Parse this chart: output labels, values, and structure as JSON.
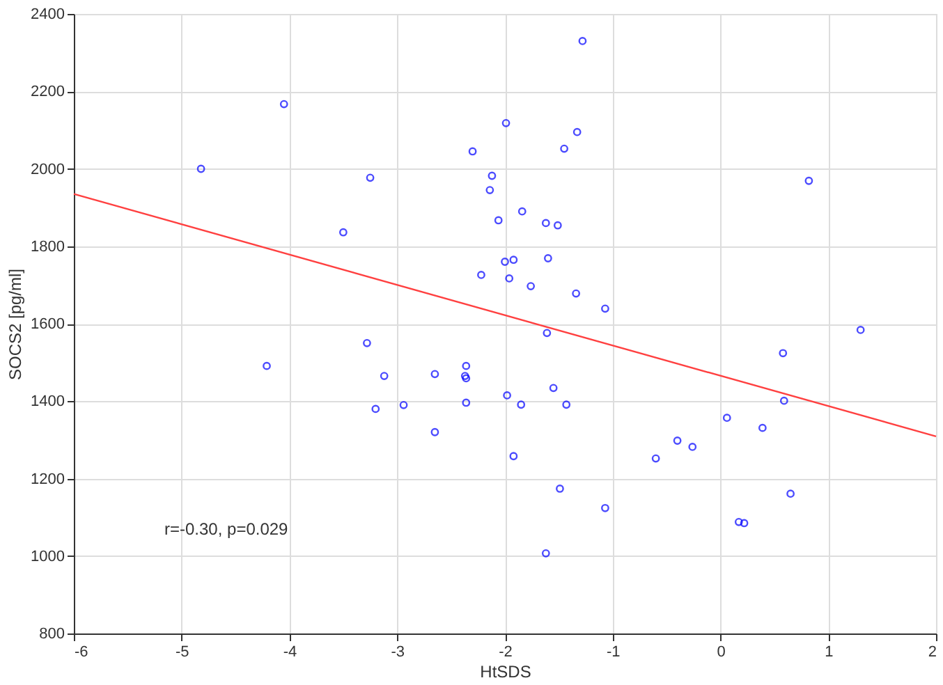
{
  "chart_data": {
    "type": "scatter",
    "xlabel": "HtSDS",
    "ylabel": "SOCS2 [pg/ml]",
    "xlim": [
      -6,
      2
    ],
    "ylim": [
      800,
      2400
    ],
    "xticks": [
      -6,
      -5,
      -4,
      -3,
      -2,
      -1,
      0,
      1,
      2
    ],
    "yticks": [
      800,
      1000,
      1200,
      1400,
      1600,
      1800,
      2000,
      2200,
      2400
    ],
    "grid": true,
    "annotations": [
      "r=-0.30, p=0.029"
    ],
    "series": [
      {
        "color": "#0000ff",
        "marker": "circle",
        "x": [
          -4.05,
          -4.82,
          -3.25,
          -3.5,
          -2.3,
          -1.99,
          -2.12,
          -2.14,
          -2.06,
          -2.0,
          -2.22,
          -1.96,
          -1.28,
          -1.33,
          -1.45,
          0.82,
          -1.84,
          -1.62,
          -1.51,
          -1.92,
          -1.6,
          -1.76,
          -1.34,
          -1.07,
          -1.61,
          1.3,
          -4.21,
          -3.28,
          -3.12,
          -2.65,
          -2.36,
          -2.37,
          -2.36,
          -3.2,
          -2.94,
          -2.36,
          -2.65,
          -1.98,
          0.58,
          -1.85,
          -1.55,
          -1.43,
          -1.92,
          0.59,
          0.06,
          0.39,
          -0.4,
          -0.26,
          -0.6,
          -1.49,
          -1.07,
          0.65,
          0.17,
          0.22,
          -1.62
        ],
        "values": [
          2167,
          2000,
          1977,
          1836,
          2045,
          2118,
          1982,
          1945,
          1867,
          1760,
          1726,
          1717,
          2330,
          2095,
          2052,
          1969,
          1890,
          1860,
          1854,
          1765,
          1769,
          1697,
          1678,
          1639,
          1576,
          1584,
          1491,
          1550,
          1465,
          1470,
          1491,
          1465,
          1459,
          1380,
          1390,
          1396,
          1320,
          1415,
          1524,
          1391,
          1434,
          1391,
          1258,
          1401,
          1357,
          1331,
          1298,
          1282,
          1252,
          1174,
          1124,
          1161,
          1088,
          1085,
          1007
        ]
      },
      {
        "type": "line",
        "color": "#ff4040",
        "marker": "none",
        "line_style": "solid",
        "x": [
          -6,
          2
        ],
        "values": [
          1935,
          1309
        ]
      }
    ]
  }
}
